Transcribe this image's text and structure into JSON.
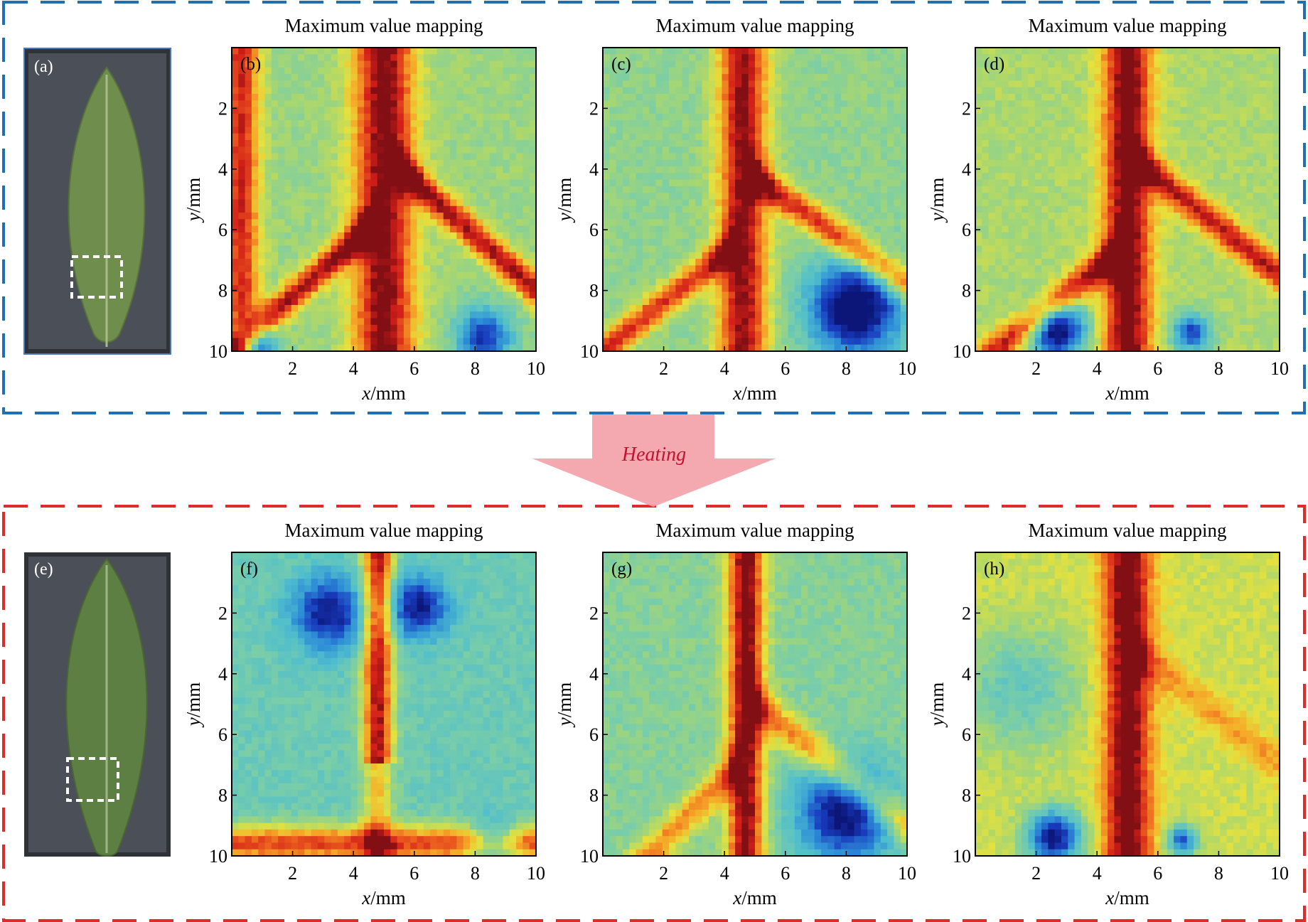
{
  "figure": {
    "arrow_label": "Heating",
    "colors": {
      "top_box": "#1f6fb5",
      "bottom_box": "#e02b2b",
      "arrow_fill": "#f2a0a6",
      "arrow_text": "#c8102e"
    },
    "photos": [
      {
        "label": "(a)",
        "icon": "leaf-photo"
      },
      {
        "label": "(e)",
        "icon": "leaf-photo"
      }
    ],
    "panels": [
      {
        "label": "(b)",
        "title": "Maximum value mapping",
        "xlabel_var": "x",
        "xlabel_unit": "/mm",
        "ylabel_var": "y",
        "ylabel_unit": "/mm",
        "xticks": [
          "2",
          "4",
          "6",
          "8",
          "10"
        ],
        "yticks": [
          "2",
          "4",
          "6",
          "8",
          "10"
        ],
        "pattern": "b"
      },
      {
        "label": "(c)",
        "title": "Maximum value mapping",
        "xlabel_var": "x",
        "xlabel_unit": "/mm",
        "ylabel_var": "y",
        "ylabel_unit": "/mm",
        "xticks": [
          "2",
          "4",
          "6",
          "8",
          "10"
        ],
        "yticks": [
          "2",
          "4",
          "6",
          "8",
          "10"
        ],
        "pattern": "c"
      },
      {
        "label": "(d)",
        "title": "Maximum value mapping",
        "xlabel_var": "x",
        "xlabel_unit": "/mm",
        "ylabel_var": "y",
        "ylabel_unit": "/mm",
        "xticks": [
          "2",
          "4",
          "6",
          "8",
          "10"
        ],
        "yticks": [
          "2",
          "4",
          "6",
          "8",
          "10"
        ],
        "pattern": "d"
      },
      {
        "label": "(f)",
        "title": "Maximum value mapping",
        "xlabel_var": "x",
        "xlabel_unit": "/mm",
        "ylabel_var": "y",
        "ylabel_unit": "/mm",
        "xticks": [
          "2",
          "4",
          "6",
          "8",
          "10"
        ],
        "yticks": [
          "2",
          "4",
          "6",
          "8",
          "10"
        ],
        "pattern": "f"
      },
      {
        "label": "(g)",
        "title": "Maximum value mapping",
        "xlabel_var": "x",
        "xlabel_unit": "/mm",
        "ylabel_var": "y",
        "ylabel_unit": "/mm",
        "xticks": [
          "2",
          "4",
          "6",
          "8",
          "10"
        ],
        "yticks": [
          "2",
          "4",
          "6",
          "8",
          "10"
        ],
        "pattern": "g"
      },
      {
        "label": "(h)",
        "title": "Maximum value mapping",
        "xlabel_var": "x",
        "xlabel_unit": "/mm",
        "ylabel_var": "y",
        "ylabel_unit": "/mm",
        "xticks": [
          "2",
          "4",
          "6",
          "8",
          "10"
        ],
        "yticks": [
          "2",
          "4",
          "6",
          "8",
          "10"
        ],
        "pattern": "h"
      }
    ]
  },
  "chart_data": [
    {
      "type": "heatmap",
      "title": "Maximum value mapping",
      "xlabel": "x/mm",
      "ylabel": "y/mm",
      "xlim": [
        0,
        10
      ],
      "ylim": [
        10,
        0
      ],
      "grid": false,
      "colormap": "jet"
    },
    {
      "type": "heatmap",
      "title": "Maximum value mapping",
      "xlabel": "x/mm",
      "ylabel": "y/mm",
      "xlim": [
        0,
        10
      ],
      "ylim": [
        10,
        0
      ],
      "grid": false,
      "colormap": "jet"
    },
    {
      "type": "heatmap",
      "title": "Maximum value mapping",
      "xlabel": "x/mm",
      "ylabel": "y/mm",
      "xlim": [
        0,
        10
      ],
      "ylim": [
        10,
        0
      ],
      "grid": false,
      "colormap": "jet"
    },
    {
      "type": "heatmap",
      "title": "Maximum value mapping",
      "xlabel": "x/mm",
      "ylabel": "y/mm",
      "xlim": [
        0,
        10
      ],
      "ylim": [
        10,
        0
      ],
      "grid": false,
      "colormap": "jet"
    },
    {
      "type": "heatmap",
      "title": "Maximum value mapping",
      "xlabel": "x/mm",
      "ylabel": "y/mm",
      "xlim": [
        0,
        10
      ],
      "ylim": [
        10,
        0
      ],
      "grid": false,
      "colormap": "jet"
    },
    {
      "type": "heatmap",
      "title": "Maximum value mapping",
      "xlabel": "x/mm",
      "ylabel": "y/mm",
      "xlim": [
        0,
        10
      ],
      "ylim": [
        10,
        0
      ],
      "grid": false,
      "colormap": "jet"
    }
  ]
}
